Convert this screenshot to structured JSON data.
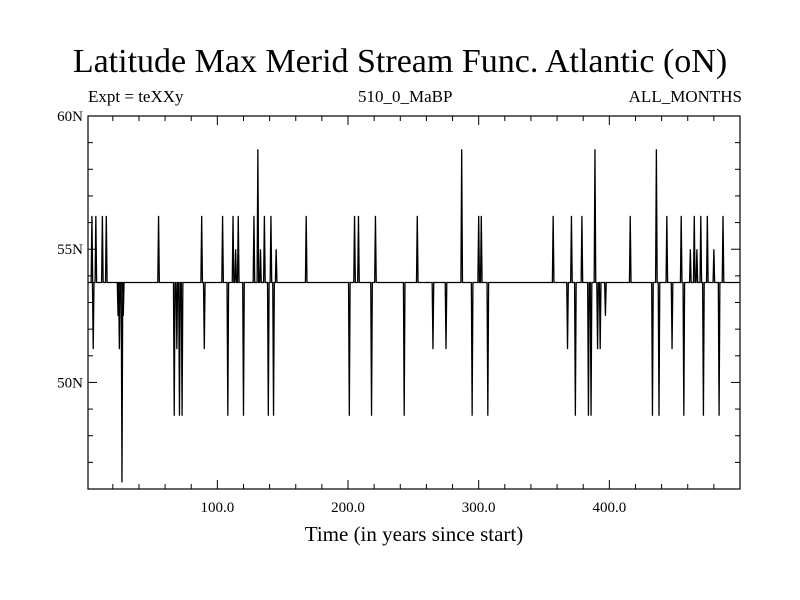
{
  "chart_data": {
    "type": "line",
    "title": "Latitude Max Merid Stream Func. Atlantic (oN)",
    "subtitle_left": "Expt = teXXy",
    "subtitle_center": "510_0_MaBP",
    "subtitle_right": "ALL_MONTHS",
    "xlabel": "Time (in years since start)",
    "ylabel": "",
    "xlim": [
      1,
      500
    ],
    "ylim": [
      46,
      60
    ],
    "x_ticks": [
      {
        "value": 100,
        "label": "100.0"
      },
      {
        "value": 200,
        "label": "200.0"
      },
      {
        "value": 300,
        "label": "300.0"
      },
      {
        "value": 400,
        "label": "400.0"
      }
    ],
    "y_ticks": [
      {
        "value": 50,
        "label": "50N"
      },
      {
        "value": 55,
        "label": "55N"
      },
      {
        "value": 60,
        "label": "60N"
      }
    ],
    "grid": false,
    "color": "#000000",
    "baseline": 53.75,
    "spikes": [
      [
        4,
        56.25
      ],
      [
        5,
        51.25
      ],
      [
        7,
        56.25
      ],
      [
        12,
        56.25
      ],
      [
        15,
        56.25
      ],
      [
        24,
        52.5
      ],
      [
        25,
        51.25
      ],
      [
        27,
        46.25
      ],
      [
        28,
        52.5
      ],
      [
        55,
        56.25
      ],
      [
        67,
        48.75
      ],
      [
        69,
        51.25
      ],
      [
        71,
        48.75
      ],
      [
        73,
        48.75
      ],
      [
        88,
        56.25
      ],
      [
        90,
        51.25
      ],
      [
        104,
        56.25
      ],
      [
        108,
        48.75
      ],
      [
        112,
        56.25
      ],
      [
        114,
        55.0
      ],
      [
        116,
        56.25
      ],
      [
        120,
        48.75
      ],
      [
        128,
        56.25
      ],
      [
        131,
        58.75
      ],
      [
        133,
        55.0
      ],
      [
        136,
        56.25
      ],
      [
        139,
        48.75
      ],
      [
        141,
        56.25
      ],
      [
        143,
        48.75
      ],
      [
        145,
        55.0
      ],
      [
        168,
        56.25
      ],
      [
        201,
        48.75
      ],
      [
        205,
        56.25
      ],
      [
        208,
        56.25
      ],
      [
        218,
        48.75
      ],
      [
        221,
        56.25
      ],
      [
        243,
        48.75
      ],
      [
        253,
        56.25
      ],
      [
        265,
        51.25
      ],
      [
        275,
        51.25
      ],
      [
        287,
        58.75
      ],
      [
        295,
        48.75
      ],
      [
        300,
        56.25
      ],
      [
        302,
        56.25
      ],
      [
        307,
        48.75
      ],
      [
        357,
        56.25
      ],
      [
        368,
        51.25
      ],
      [
        371,
        56.25
      ],
      [
        374,
        48.75
      ],
      [
        379,
        56.25
      ],
      [
        384,
        48.75
      ],
      [
        386,
        48.75
      ],
      [
        389,
        58.75
      ],
      [
        391,
        51.25
      ],
      [
        393,
        51.25
      ],
      [
        397,
        52.5
      ],
      [
        416,
        56.25
      ],
      [
        433,
        48.75
      ],
      [
        436,
        58.75
      ],
      [
        438,
        48.75
      ],
      [
        444,
        56.25
      ],
      [
        448,
        51.25
      ],
      [
        455,
        56.25
      ],
      [
        457,
        48.75
      ],
      [
        462,
        55.0
      ],
      [
        465,
        56.25
      ],
      [
        467,
        55.0
      ],
      [
        470,
        56.25
      ],
      [
        472,
        48.75
      ],
      [
        475,
        56.25
      ],
      [
        480,
        55.0
      ],
      [
        484,
        48.75
      ],
      [
        487,
        56.25
      ]
    ]
  }
}
